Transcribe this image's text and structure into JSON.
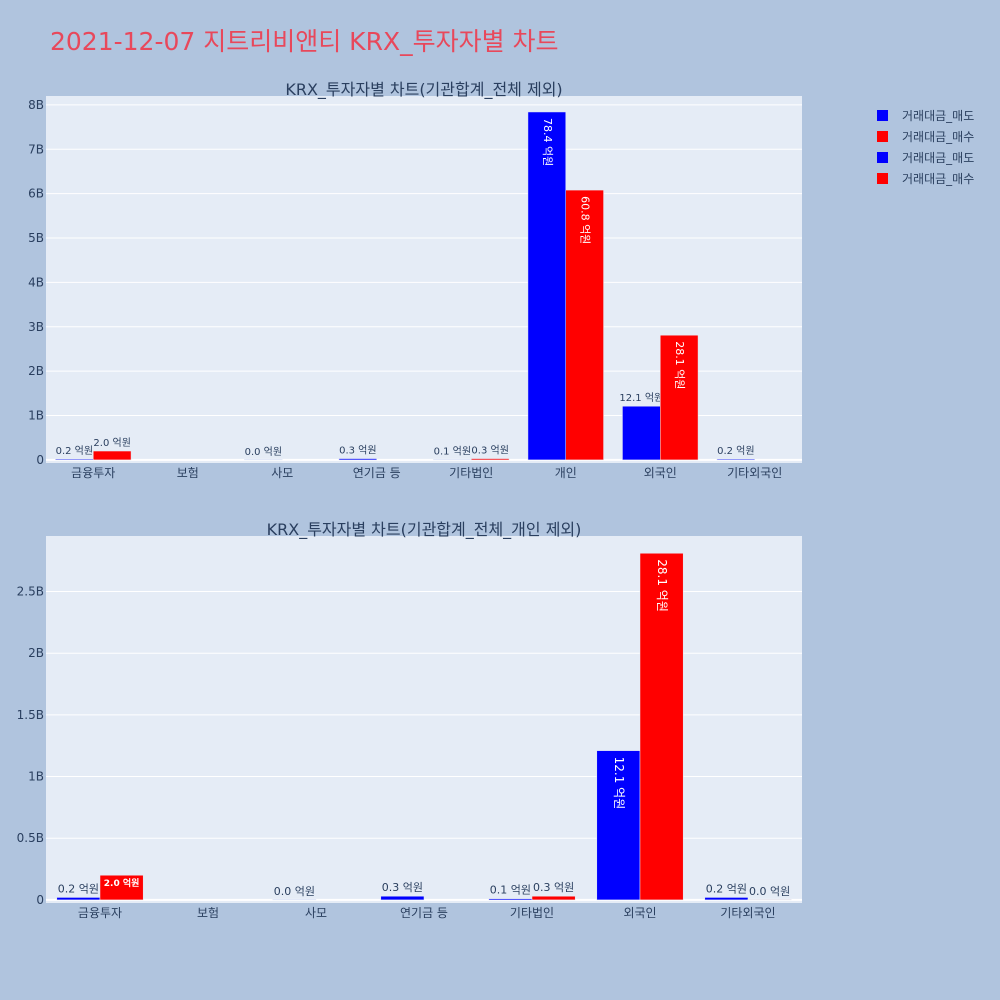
{
  "page_title": "2021-12-07 지트리비앤티 KRX_투자자별 차트",
  "legend": [
    {
      "label": "거래대금_매도",
      "color": "#0000ff"
    },
    {
      "label": "거래대금_매수",
      "color": "#ff0000"
    },
    {
      "label": "거래대금_매도",
      "color": "#0000ff"
    },
    {
      "label": "거래대금_매수",
      "color": "#ff0000"
    }
  ],
  "chart_data": [
    {
      "type": "bar",
      "title": "KRX_투자자별 차트(기관합계_전체 제외)",
      "categories": [
        "금융투자",
        "보험",
        "사모",
        "연기금 등",
        "기타법인",
        "개인",
        "외국인",
        "기타외국인"
      ],
      "ylim": [
        0,
        8200000000
      ],
      "yticks": [
        0,
        1000000000,
        2000000000,
        3000000000,
        4000000000,
        5000000000,
        6000000000,
        7000000000,
        8000000000
      ],
      "ytick_labels": [
        "0",
        "1B",
        "2B",
        "3B",
        "4B",
        "5B",
        "6B",
        "7B",
        "8B"
      ],
      "series": [
        {
          "name": "거래대금_매도",
          "color": "#0000ff",
          "values": [
            20000000,
            null,
            0,
            30000000,
            10000000,
            7840000000,
            1210000000,
            20000000
          ],
          "labels": [
            "0.2 억원",
            null,
            "0.0 억원",
            "0.3 억원",
            "0.1 억원",
            "78.4 억원",
            "12.1 억원",
            "0.2 억원"
          ]
        },
        {
          "name": "거래대금_매수",
          "color": "#ff0000",
          "values": [
            200000000,
            null,
            null,
            null,
            30000000,
            6080000000,
            2810000000,
            null
          ],
          "labels": [
            "2.0 억원",
            null,
            null,
            null,
            "0.3 억원",
            "60.8 억원",
            "28.1 억원",
            null
          ]
        }
      ]
    },
    {
      "type": "bar",
      "title": "KRX_투자자별 차트(기관합계_전체_개인 제외)",
      "categories": [
        "금융투자",
        "보험",
        "사모",
        "연기금 등",
        "기타법인",
        "외국인",
        "기타외국인"
      ],
      "ylim": [
        0,
        2950000000
      ],
      "yticks": [
        0,
        500000000,
        1000000000,
        1500000000,
        2000000000,
        2500000000
      ],
      "ytick_labels": [
        "0",
        "0.5B",
        "1B",
        "1.5B",
        "2B",
        "2.5B"
      ],
      "series": [
        {
          "name": "거래대금_매도",
          "color": "#0000ff",
          "values": [
            20000000,
            null,
            0,
            30000000,
            10000000,
            1210000000,
            20000000
          ],
          "labels": [
            "0.2 억원",
            null,
            "0.0 억원",
            "0.3 억원",
            "0.1 억원",
            "12.1 억원",
            "0.2 억원"
          ]
        },
        {
          "name": "거래대금_매수",
          "color": "#ff0000",
          "values": [
            200000000,
            null,
            null,
            null,
            30000000,
            2810000000,
            0
          ],
          "labels": [
            "2.0 억원",
            null,
            null,
            null,
            "0.3 억원",
            "28.1 억원",
            "0.0 억원"
          ]
        }
      ]
    }
  ]
}
